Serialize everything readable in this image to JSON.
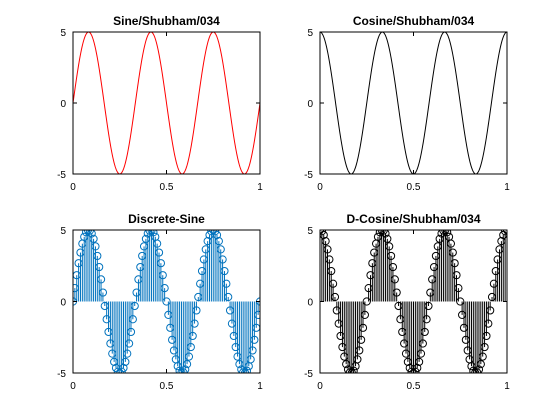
{
  "figure": {
    "background": "#ffffff",
    "axis_color": "#000000"
  },
  "chart_data": [
    {
      "id": "sine",
      "type": "line",
      "title": "Sine/Shubham/034",
      "color": "#ff0000",
      "function": "sin",
      "amplitude": 5,
      "frequency": 3,
      "samples": 400,
      "xlim": [
        0,
        1
      ],
      "ylim": [
        -5,
        5
      ],
      "xticks": [
        0,
        0.5,
        1
      ],
      "xtick_labels": [
        "0",
        "0.5",
        "1"
      ],
      "yticks": [
        -5,
        0,
        5
      ],
      "ytick_labels": [
        "-5",
        "0",
        "5"
      ],
      "grid": false,
      "marker": "none"
    },
    {
      "id": "cosine",
      "type": "line",
      "title": "Cosine/Shubham/034",
      "color": "#000000",
      "function": "cos",
      "amplitude": 5,
      "frequency": 3,
      "samples": 400,
      "xlim": [
        0,
        1
      ],
      "ylim": [
        -5,
        5
      ],
      "xticks": [
        0,
        0.5,
        1
      ],
      "xtick_labels": [
        "0",
        "0.5",
        "1"
      ],
      "yticks": [
        -5,
        0,
        5
      ],
      "ytick_labels": [
        "-5",
        "0",
        "5"
      ],
      "grid": false,
      "marker": "none"
    },
    {
      "id": "discrete-sine",
      "type": "stem",
      "title": "Discrete-Sine",
      "color": "#0072bd",
      "function": "sin",
      "amplitude": 5,
      "frequency": 3,
      "samples": 101,
      "xlim": [
        0,
        1
      ],
      "ylim": [
        -5,
        5
      ],
      "xticks": [
        0,
        0.5,
        1
      ],
      "xtick_labels": [
        "0",
        "0.5",
        "1"
      ],
      "yticks": [
        -5,
        0,
        5
      ],
      "ytick_labels": [
        "-5",
        "0",
        "5"
      ],
      "grid": false,
      "marker": "circle"
    },
    {
      "id": "discrete-cosine",
      "type": "stem",
      "title": "D-Cosine/Shubham/034",
      "color": "#000000",
      "function": "cos",
      "amplitude": 5,
      "frequency": 3,
      "samples": 101,
      "xlim": [
        0,
        1
      ],
      "ylim": [
        -5,
        5
      ],
      "xticks": [
        0,
        0.5,
        1
      ],
      "xtick_labels": [
        "0",
        "0.5",
        "1"
      ],
      "yticks": [
        -5,
        0,
        5
      ],
      "ytick_labels": [
        "-5",
        "0",
        "5"
      ],
      "grid": false,
      "marker": "circle"
    }
  ]
}
